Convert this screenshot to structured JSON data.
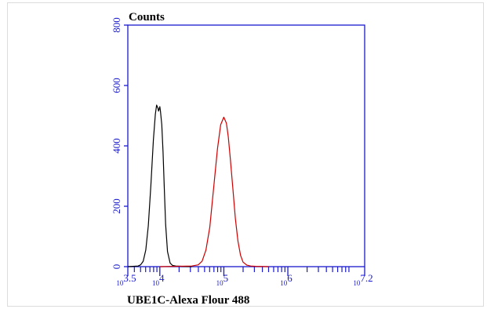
{
  "chart_data": {
    "type": "line",
    "title": "",
    "ylabel": "Counts",
    "xlabel": "UBE1C-Alexa Flour 488",
    "x_scale": "log",
    "xlim": [
      3.5,
      7.2
    ],
    "ylim": [
      0,
      800
    ],
    "y_ticks": [
      0,
      200,
      400,
      600,
      800
    ],
    "y_tick_labels": [
      "0",
      "200",
      "400",
      "600",
      "800"
    ],
    "x_major_ticks": [
      {
        "base": "10",
        "exp": "3.5",
        "value": 3.5
      },
      {
        "base": "10",
        "exp": "4",
        "value": 4
      },
      {
        "base": "10",
        "exp": "5",
        "value": 5
      },
      {
        "base": "10",
        "exp": "6",
        "value": 6
      },
      {
        "base": "10",
        "exp": "7.2",
        "value": 7.2
      }
    ],
    "grid": false,
    "legend": "none",
    "series": [
      {
        "color": "#000000",
        "x": [
          3.5,
          3.66,
          3.7,
          3.74,
          3.78,
          3.82,
          3.86,
          3.9,
          3.93,
          3.95,
          3.97,
          3.98,
          4.0,
          4.01,
          4.03,
          4.05,
          4.07,
          4.09,
          4.12,
          4.16,
          4.2,
          4.25,
          4.35,
          4.5
        ],
        "y": [
          0,
          2,
          6,
          18,
          55,
          135,
          270,
          420,
          505,
          535,
          525,
          515,
          530,
          515,
          470,
          380,
          260,
          140,
          50,
          12,
          4,
          2,
          1,
          0
        ]
      },
      {
        "color": "#cc0000",
        "x": [
          4.0,
          4.5,
          4.6,
          4.66,
          4.72,
          4.78,
          4.84,
          4.9,
          4.95,
          5.0,
          5.04,
          5.07,
          5.1,
          5.14,
          5.18,
          5.22,
          5.26,
          5.3,
          5.36,
          5.42,
          5.5,
          5.7
        ],
        "y": [
          0,
          2,
          6,
          18,
          55,
          130,
          260,
          390,
          470,
          495,
          475,
          430,
          360,
          260,
          160,
          85,
          38,
          15,
          5,
          2,
          1,
          0
        ]
      }
    ]
  },
  "colors": {
    "axis": "#1a1acc",
    "label": "#000000",
    "black_series": "#000000",
    "red_series": "#cc0000"
  }
}
